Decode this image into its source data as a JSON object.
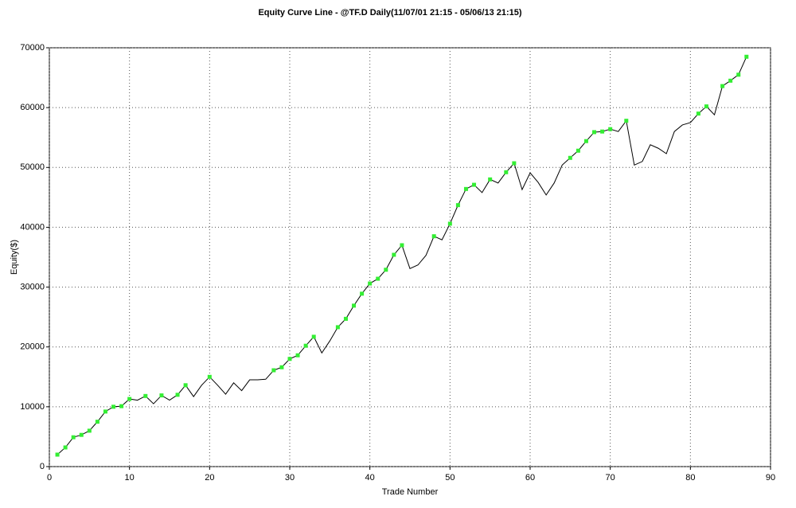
{
  "chart_data": {
    "type": "line",
    "title": "Equity Curve Line - @TF.D Daily(11/07/01 21:15 - 05/06/13 21:15)",
    "x_label": "Trade Number",
    "y_label": "Equity($)",
    "x": [
      1,
      2,
      3,
      4,
      5,
      6,
      7,
      8,
      9,
      10,
      11,
      12,
      13,
      14,
      15,
      16,
      17,
      18,
      19,
      20,
      21,
      22,
      23,
      24,
      25,
      26,
      27,
      28,
      29,
      30,
      31,
      32,
      33,
      34,
      35,
      36,
      37,
      38,
      39,
      40,
      41,
      42,
      43,
      44,
      45,
      46,
      47,
      48,
      49,
      50,
      51,
      52,
      53,
      54,
      55,
      56,
      57,
      58,
      59,
      60,
      61,
      62,
      63,
      64,
      65,
      66,
      67,
      68,
      69,
      70,
      71,
      72,
      73,
      74,
      75,
      76,
      77,
      78,
      79,
      80,
      81,
      82,
      83,
      84,
      85,
      86,
      87
    ],
    "series": [
      {
        "name": "Equity",
        "color": "#000000",
        "marker_color": "#33ee33",
        "values": [
          2000,
          3200,
          4900,
          5300,
          6000,
          7500,
          9200,
          10000,
          10100,
          11300,
          11100,
          11800,
          10500,
          11900,
          11100,
          12000,
          13600,
          11700,
          13600,
          15000,
          13600,
          12100,
          14000,
          12700,
          14500,
          14500,
          14600,
          16100,
          16600,
          18000,
          18600,
          20200,
          21700,
          19000,
          21000,
          23300,
          24700,
          26900,
          28900,
          30600,
          31400,
          32900,
          35400,
          37000,
          33100,
          33700,
          35300,
          38500,
          37900,
          40600,
          43700,
          46400,
          47100,
          45800,
          48000,
          47400,
          49200,
          50700,
          46300,
          49100,
          47500,
          45400,
          47400,
          50400,
          51600,
          52800,
          54400,
          55900,
          56000,
          56400,
          56000,
          57800,
          50400,
          51000,
          53800,
          53200,
          52300,
          56000,
          57100,
          57500,
          59000,
          60200,
          58800,
          63600,
          64500,
          65500,
          68500
        ]
      }
    ],
    "xlim": [
      0,
      90
    ],
    "xticks": [
      0,
      10,
      20,
      30,
      40,
      50,
      60,
      70,
      80,
      90
    ],
    "ylim": [
      0,
      70000
    ],
    "yticks": [
      0,
      10000,
      20000,
      30000,
      40000,
      50000,
      60000,
      70000
    ],
    "grid": true
  }
}
